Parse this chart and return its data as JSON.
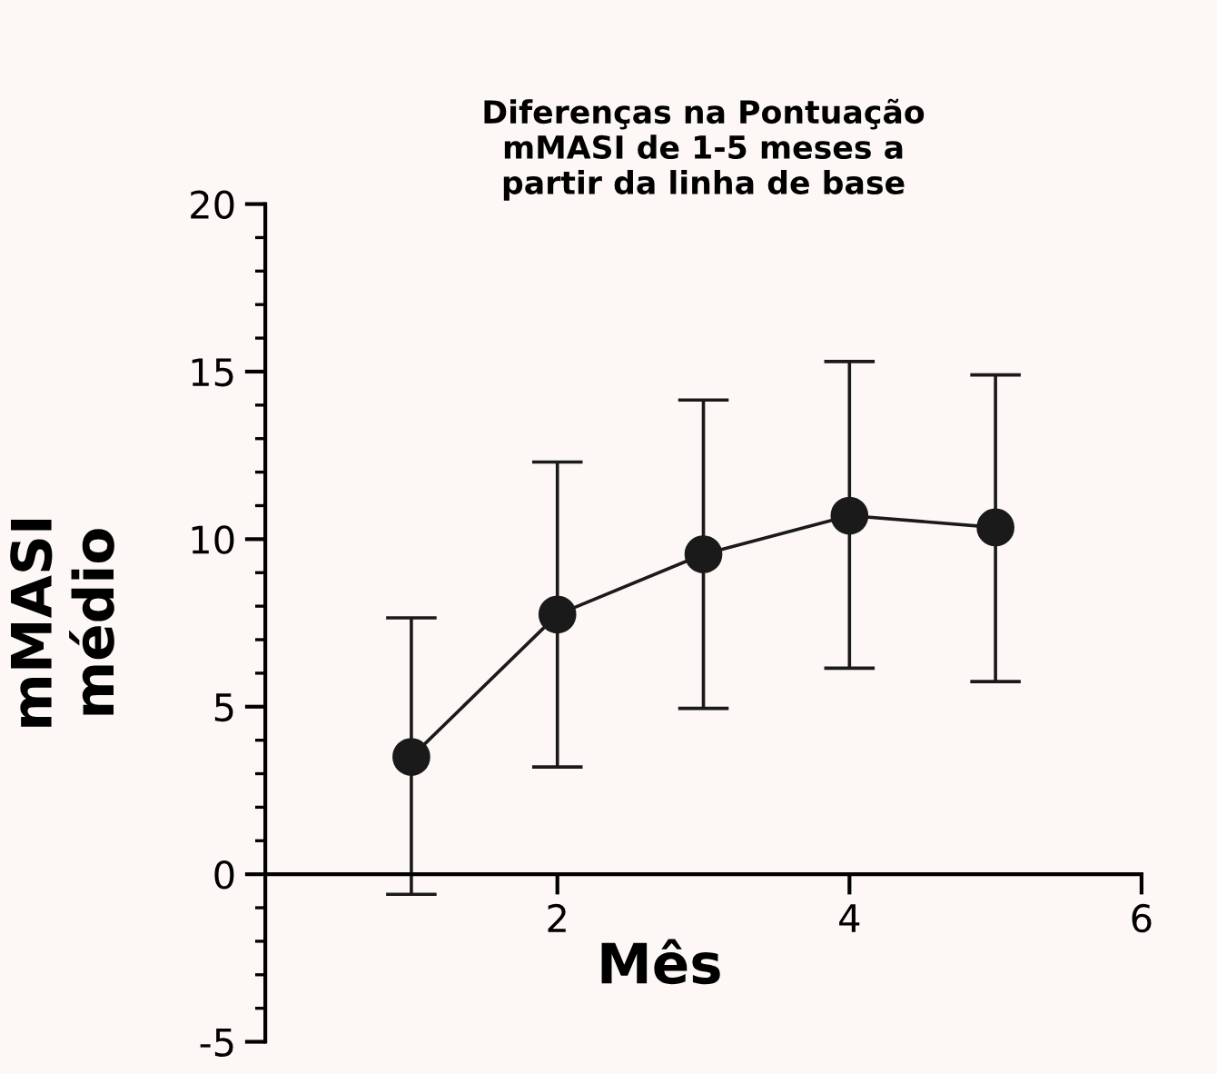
{
  "chart_data": {
    "type": "line",
    "title": "Diferenças na Pontuação\nmMASI de 1-5 meses a\npartir da linha de base",
    "xlabel": "Mês",
    "ylabel": "mMASI\nmédio",
    "x": [
      1,
      2,
      3,
      4,
      5
    ],
    "series": [
      {
        "color": "#1a1a1a",
        "values": [
          3.5,
          7.75,
          9.55,
          10.7,
          10.35
        ],
        "errors": [
          [
            -0.6,
            7.65
          ],
          [
            3.2,
            12.3
          ],
          [
            4.95,
            14.15
          ],
          [
            6.15,
            15.3
          ],
          [
            5.75,
            14.9
          ]
        ]
      }
    ],
    "xlim": [
      0,
      6
    ],
    "xticks": [
      2,
      4,
      6
    ],
    "ylim": [
      -5,
      20
    ],
    "yticks": [
      -5,
      0,
      5,
      10,
      15,
      20
    ],
    "marker": "circle",
    "line_style": "solid",
    "grid": false,
    "legend": false
  }
}
